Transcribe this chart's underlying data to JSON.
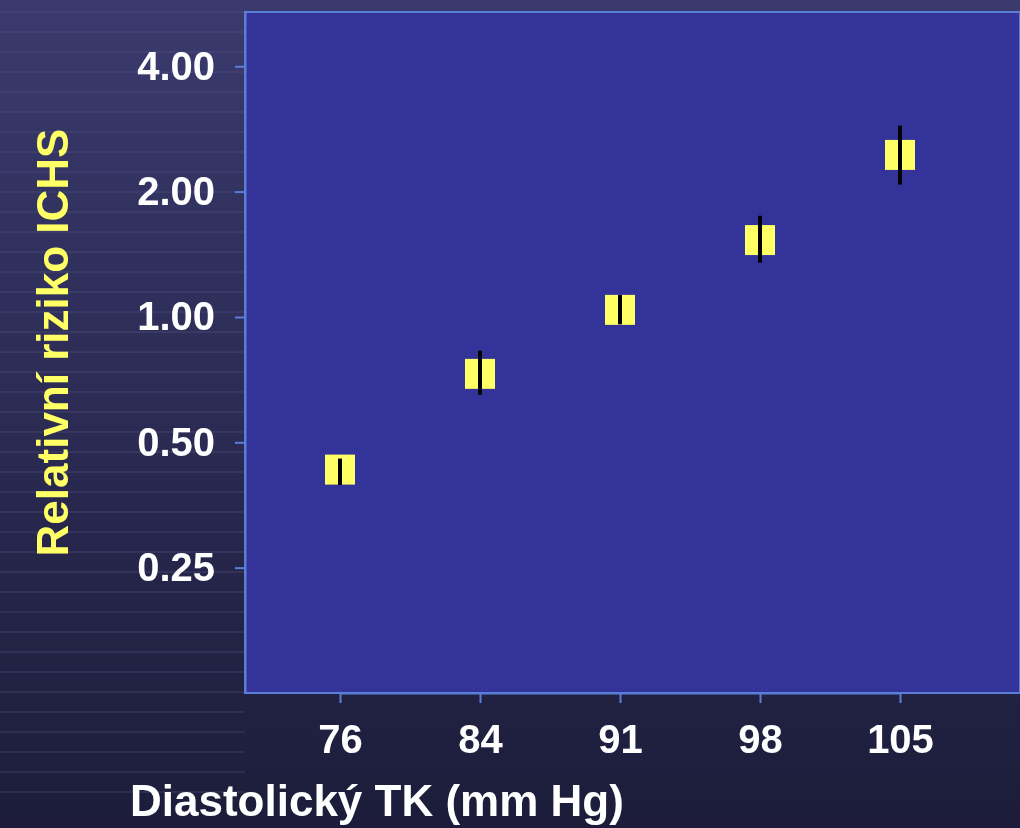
{
  "chart_data": {
    "type": "scatter",
    "xlabel": "Diastolický TK (mm Hg)",
    "ylabel": "Relativní riziko ICHS",
    "categories": [
      "76",
      "84",
      "91",
      "98",
      "105"
    ],
    "series": [
      {
        "color": "#ffff66",
        "values": [
          0.43,
          0.73,
          1.04,
          1.53,
          2.45
        ],
        "errors": [
          [
            0.395,
            0.457
          ],
          [
            0.65,
            0.83
          ],
          [
            0.96,
            1.13
          ],
          [
            1.35,
            1.75
          ],
          [
            2.08,
            2.88
          ]
        ]
      }
    ],
    "log": "y",
    "ylim": [
      0.125,
      5.4
    ],
    "yticks": [
      {
        "value": 0.25,
        "label": "0.25"
      },
      {
        "value": 0.5,
        "label": "0.50"
      },
      {
        "value": 1,
        "label": "1.00"
      },
      {
        "value": 2,
        "label": "2.00"
      },
      {
        "value": 4,
        "label": "4.00"
      }
    ],
    "marker": "square",
    "grid": false
  }
}
